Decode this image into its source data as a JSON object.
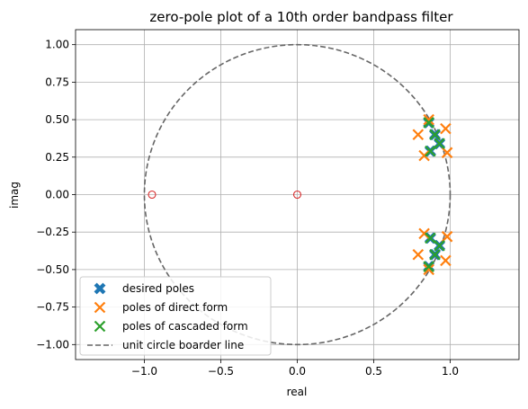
{
  "chart_data": {
    "type": "scatter",
    "title": "zero-pole plot of a 10th order bandpass filter",
    "xlabel": "real",
    "ylabel": "imag",
    "xlim": [
      -1.45,
      1.45
    ],
    "ylim": [
      -1.1,
      1.1
    ],
    "xticks": [
      -1.0,
      -0.5,
      0.0,
      0.5,
      1.0
    ],
    "xtick_labels": [
      "−1.0",
      "−0.5",
      "0.0",
      "0.5",
      "1.0"
    ],
    "yticks": [
      -1.0,
      -0.75,
      -0.5,
      -0.25,
      0.0,
      0.25,
      0.5,
      0.75,
      1.0
    ],
    "ytick_labels": [
      "−1.00",
      "−0.75",
      "−0.50",
      "−0.25",
      "0.00",
      "0.25",
      "0.50",
      "0.75",
      "1.00"
    ],
    "grid": true,
    "legend_position": "lower-left",
    "series": [
      {
        "name": "desired poles",
        "marker": "X-filled",
        "color": "#1f77b4",
        "points": [
          [
            0.86,
            0.48
          ],
          [
            0.9,
            0.4
          ],
          [
            0.93,
            0.34
          ],
          [
            0.87,
            0.29
          ],
          [
            0.86,
            -0.48
          ],
          [
            0.9,
            -0.4
          ],
          [
            0.93,
            -0.34
          ],
          [
            0.87,
            -0.29
          ]
        ]
      },
      {
        "name": "poles of direct form",
        "marker": "x",
        "color": "#ff7f0e",
        "points": [
          [
            0.86,
            0.5
          ],
          [
            0.97,
            0.44
          ],
          [
            0.79,
            0.4
          ],
          [
            0.98,
            0.28
          ],
          [
            0.83,
            0.26
          ],
          [
            0.86,
            -0.5
          ],
          [
            0.97,
            -0.44
          ],
          [
            0.79,
            -0.4
          ],
          [
            0.98,
            -0.28
          ],
          [
            0.83,
            -0.26
          ]
        ]
      },
      {
        "name": "poles of cascaded form",
        "marker": "x",
        "color": "#2ca02c",
        "points": [
          [
            0.86,
            0.48
          ],
          [
            0.9,
            0.4
          ],
          [
            0.93,
            0.34
          ],
          [
            0.87,
            0.29
          ],
          [
            0.86,
            -0.48
          ],
          [
            0.9,
            -0.4
          ],
          [
            0.93,
            -0.34
          ],
          [
            0.87,
            -0.29
          ]
        ]
      },
      {
        "name": "unit circle boarder line",
        "marker": "dashed-line",
        "color": "#666666",
        "radius": 1.0
      },
      {
        "marker": "o-hollow",
        "color": "#d62728",
        "points": [
          [
            -0.95,
            0.0
          ],
          [
            0.0,
            0.0
          ]
        ]
      }
    ]
  }
}
